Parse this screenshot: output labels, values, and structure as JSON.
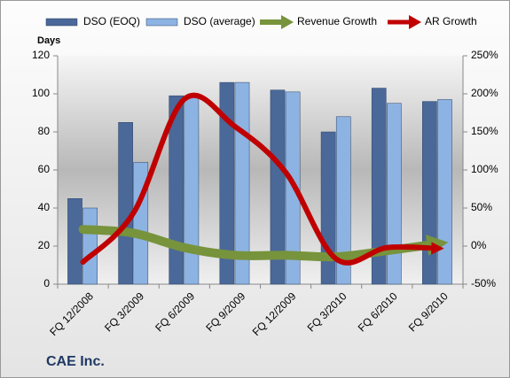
{
  "chart_data": {
    "type": "bar-line",
    "y_label": "Days",
    "footer": "CAE Inc.",
    "categories": [
      "FQ 12/2008",
      "FQ 3/2009",
      "FQ 6/2009",
      "FQ 9/2009",
      "FQ 12/2009",
      "FQ 3/2010",
      "FQ 6/2010",
      "FQ 9/2010"
    ],
    "series": [
      {
        "name": "DSO (EOQ)",
        "type": "bar",
        "color": "#4a6898",
        "values": [
          45,
          85,
          99,
          106,
          102,
          80,
          103,
          96
        ]
      },
      {
        "name": "DSO (average)",
        "type": "bar",
        "color": "#8db3e2",
        "values": [
          40,
          64,
          99,
          106,
          101,
          88,
          95,
          97
        ]
      },
      {
        "name": "Revenue Growth",
        "type": "line",
        "axis": "y2",
        "color": "#77933c",
        "values": [
          22,
          17,
          -2,
          -12,
          -12,
          -14,
          -6,
          3
        ]
      },
      {
        "name": "AR Growth",
        "type": "line",
        "axis": "y2",
        "color": "#c00000",
        "values": [
          -21,
          44,
          193,
          157,
          97,
          -17,
          -2,
          -3
        ]
      }
    ],
    "ylim": [
      0,
      120
    ],
    "yticks": [
      0,
      20,
      40,
      60,
      80,
      100,
      120
    ],
    "y2lim": [
      -50,
      250
    ],
    "y2ticks": [
      {
        "value": -50,
        "label": "-50%"
      },
      {
        "value": 0,
        "label": "0%"
      },
      {
        "value": 50,
        "label": "50%"
      },
      {
        "value": 100,
        "label": "100%"
      },
      {
        "value": 150,
        "label": "150%"
      },
      {
        "value": 200,
        "label": "200%"
      },
      {
        "value": 250,
        "label": "250%"
      }
    ],
    "grid": false
  }
}
